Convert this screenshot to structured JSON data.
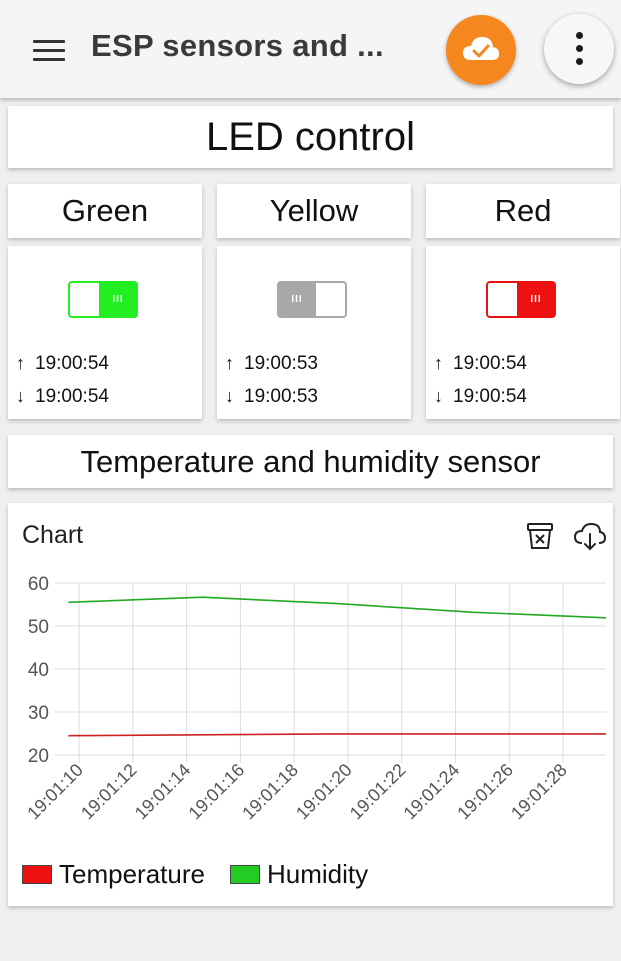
{
  "app": {
    "title": "ESP sensors and ..."
  },
  "colors": {
    "green": "#22ee22",
    "red": "#ee1111",
    "gray": "#a8a8a8",
    "accent": "#f6871f"
  },
  "led_section": {
    "title": "LED control"
  },
  "leds": [
    {
      "name": "Green",
      "state": "on",
      "up_time": "19:00:54",
      "down_time": "19:00:54"
    },
    {
      "name": "Yellow",
      "state": "off",
      "up_time": "19:00:53",
      "down_time": "19:00:53"
    },
    {
      "name": "Red",
      "state": "on",
      "up_time": "19:00:54",
      "down_time": "19:00:54"
    }
  ],
  "sensor_section": {
    "title": "Temperature and humidity sensor"
  },
  "chart_card": {
    "title": "Chart"
  },
  "chart_data": {
    "type": "line",
    "title": "Chart",
    "xlabel": "",
    "ylabel": "",
    "ylim": [
      20,
      60
    ],
    "yticks": [
      20,
      30,
      40,
      50,
      60
    ],
    "xlim": [
      9.4,
      29.6
    ],
    "x_ticks": [
      10,
      12,
      14,
      16,
      18,
      20,
      22,
      24,
      26,
      28
    ],
    "x_tick_labels": [
      "19:01:10",
      "19:01:12",
      "19:01:14",
      "19:01:16",
      "19:01:18",
      "19:01:20",
      "19:01:22",
      "19:01:24",
      "19:01:26",
      "19:01:28"
    ],
    "grid": true,
    "legend_position": "bottom-left",
    "series": [
      {
        "name": "Temperature",
        "color": "#cc2222",
        "swatch": "#ee1111",
        "x": [
          9.6,
          14.6,
          19.6,
          24.6,
          29.6
        ],
        "values": [
          24.5,
          24.7,
          24.9,
          24.9,
          24.9
        ]
      },
      {
        "name": "Humidity",
        "color": "#22aa22",
        "swatch": "#22cc22",
        "x": [
          9.6,
          14.6,
          19.6,
          24.6,
          29.6
        ],
        "values": [
          55.5,
          56.7,
          55.2,
          53.2,
          51.9
        ]
      }
    ]
  }
}
